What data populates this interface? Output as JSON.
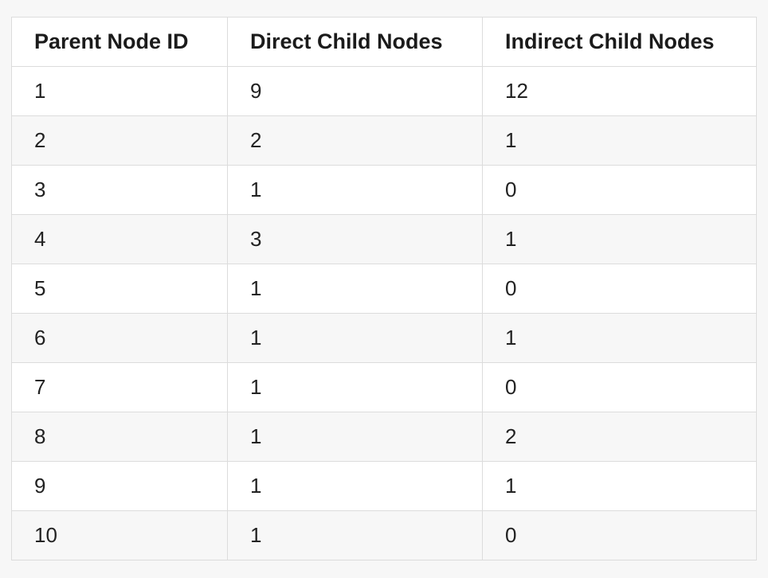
{
  "table": {
    "headers": [
      "Parent Node ID",
      "Direct Child Nodes",
      "Indirect Child Nodes"
    ],
    "rows": [
      [
        "1",
        "9",
        "12"
      ],
      [
        "2",
        "2",
        "1"
      ],
      [
        "3",
        "1",
        "0"
      ],
      [
        "4",
        "3",
        "1"
      ],
      [
        "5",
        "1",
        "0"
      ],
      [
        "6",
        "1",
        "1"
      ],
      [
        "7",
        "1",
        "0"
      ],
      [
        "8",
        "1",
        "2"
      ],
      [
        "9",
        "1",
        "1"
      ],
      [
        "10",
        "1",
        "0"
      ]
    ]
  }
}
